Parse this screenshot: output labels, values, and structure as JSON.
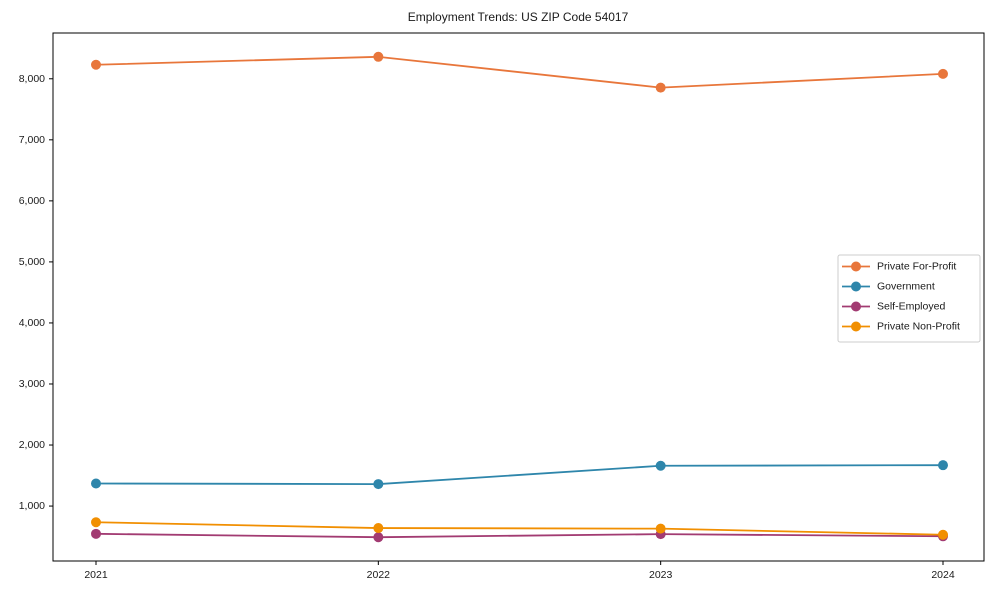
{
  "chart_data": {
    "type": "line",
    "title": "Employment Trends: US ZIP Code 54017",
    "x": [
      "2021",
      "2022",
      "2023",
      "2024"
    ],
    "series": [
      {
        "name": "Private For-Profit",
        "color": "#E8763B",
        "values": [
          8230,
          8360,
          7855,
          8080
        ]
      },
      {
        "name": "Government",
        "color": "#2E86AB",
        "values": [
          1370,
          1360,
          1660,
          1670
        ]
      },
      {
        "name": "Self-Employed",
        "color": "#A23B72",
        "values": [
          545,
          490,
          540,
          505
        ]
      },
      {
        "name": "Private Non-Profit",
        "color": "#F18F01",
        "values": [
          735,
          640,
          630,
          530
        ]
      }
    ],
    "ylim": [
      100,
      8750
    ],
    "yticks": [
      {
        "value": 1000,
        "label": "1,000"
      },
      {
        "value": 2000,
        "label": "2,000"
      },
      {
        "value": 3000,
        "label": "3,000"
      },
      {
        "value": 4000,
        "label": "4,000"
      },
      {
        "value": 5000,
        "label": "5,000"
      },
      {
        "value": 6000,
        "label": "6,000"
      },
      {
        "value": 7000,
        "label": "7,000"
      },
      {
        "value": 8000,
        "label": "8,000"
      }
    ],
    "grid": false,
    "legend_position": "center right",
    "background": "#ffffff",
    "axis_color": "#000000",
    "legend_border_color": "#cccccc"
  }
}
